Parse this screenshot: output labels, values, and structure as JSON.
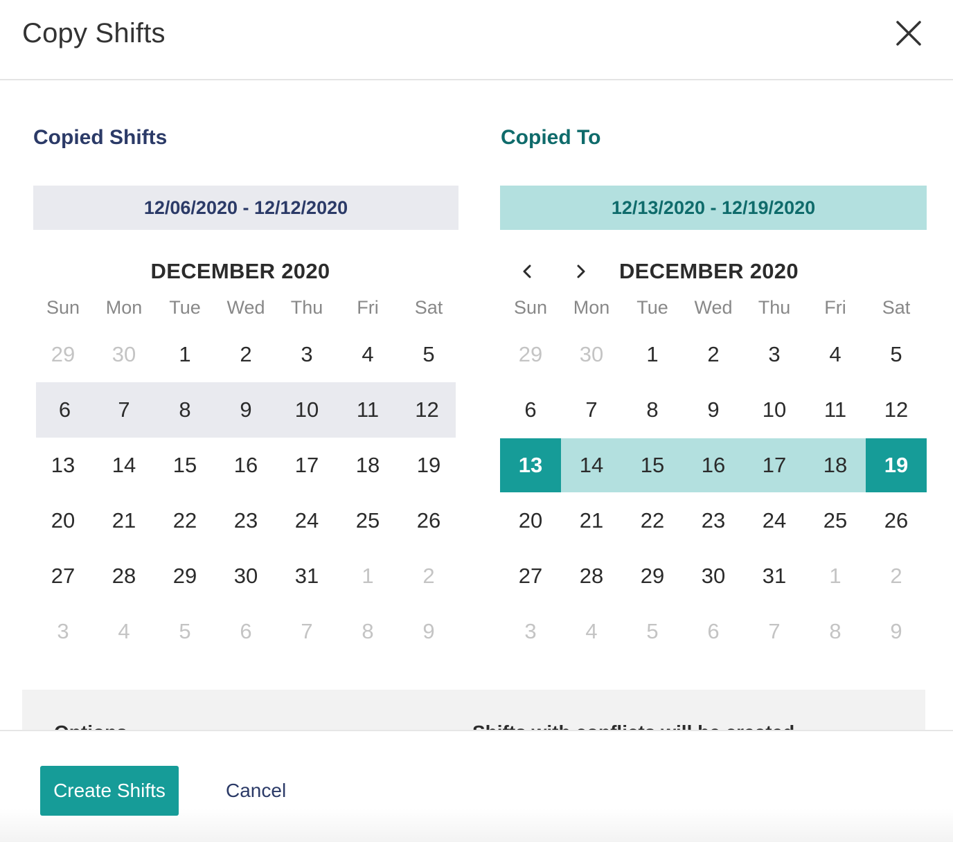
{
  "dialog": {
    "title": "Copy Shifts",
    "close_icon": "close-icon"
  },
  "copied_shifts": {
    "heading": "Copied Shifts",
    "range": "12/06/2020 - 12/12/2020",
    "month": "DECEMBER 2020",
    "days_of_week": [
      "Sun",
      "Mon",
      "Tue",
      "Wed",
      "Thu",
      "Fri",
      "Sat"
    ],
    "weeks": [
      [
        "29",
        "30",
        "1",
        "2",
        "3",
        "4",
        "5"
      ],
      [
        "6",
        "7",
        "8",
        "9",
        "10",
        "11",
        "12"
      ],
      [
        "13",
        "14",
        "15",
        "16",
        "17",
        "18",
        "19"
      ],
      [
        "20",
        "21",
        "22",
        "23",
        "24",
        "25",
        "26"
      ],
      [
        "27",
        "28",
        "29",
        "30",
        "31",
        "1",
        "2"
      ],
      [
        "3",
        "4",
        "5",
        "6",
        "7",
        "8",
        "9"
      ]
    ]
  },
  "copied_to": {
    "heading": "Copied To",
    "range": "12/13/2020 - 12/19/2020",
    "month": "DECEMBER 2020",
    "prev_icon": "chevron-left-icon",
    "next_icon": "chevron-right-icon",
    "days_of_week": [
      "Sun",
      "Mon",
      "Tue",
      "Wed",
      "Thu",
      "Fri",
      "Sat"
    ],
    "weeks": [
      [
        "29",
        "30",
        "1",
        "2",
        "3",
        "4",
        "5"
      ],
      [
        "6",
        "7",
        "8",
        "9",
        "10",
        "11",
        "12"
      ],
      [
        "13",
        "14",
        "15",
        "16",
        "17",
        "18",
        "19"
      ],
      [
        "20",
        "21",
        "22",
        "23",
        "24",
        "25",
        "26"
      ],
      [
        "27",
        "28",
        "29",
        "30",
        "31",
        "1",
        "2"
      ],
      [
        "3",
        "4",
        "5",
        "6",
        "7",
        "8",
        "9"
      ]
    ]
  },
  "options": {
    "left_text": "Options",
    "right_text": "Shifts with conflicts will be created"
  },
  "footer": {
    "create_label": "Create Shifts",
    "cancel_label": "Cancel"
  },
  "colors": {
    "navy": "#2b3a67",
    "teal": "#169c98",
    "teal_dark_text": "#0f6b6b",
    "teal_light": "#b3e0df",
    "grey_selection": "#e9eaef"
  }
}
